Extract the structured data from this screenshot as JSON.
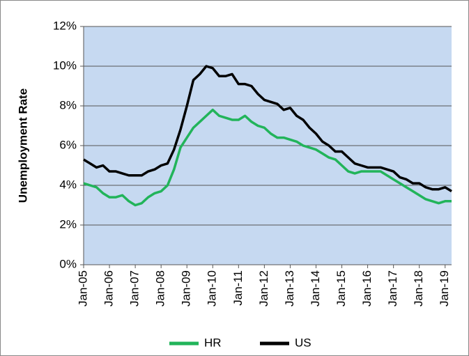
{
  "chart_data": {
    "type": "line",
    "y_label": "Unemployment Rate",
    "categories": [
      "Jan-05",
      null,
      null,
      null,
      "Jan-06",
      null,
      null,
      null,
      "Jan-07",
      null,
      null,
      null,
      "Jan-08",
      null,
      null,
      null,
      "Jan-09",
      null,
      null,
      null,
      "Jan-10",
      null,
      null,
      null,
      "Jan-11",
      null,
      null,
      null,
      "Jan-12",
      null,
      null,
      null,
      "Jan-13",
      null,
      null,
      null,
      "Jan-14",
      null,
      null,
      null,
      "Jan-15",
      null,
      null,
      null,
      "Jan-16",
      null,
      null,
      null,
      "Jan-17",
      null,
      null,
      null,
      "Jan-18",
      null,
      null,
      null,
      "Jan-19",
      null
    ],
    "series": [
      {
        "name": "HR",
        "color": "#22b45a",
        "values": [
          4.1,
          4.0,
          3.9,
          3.6,
          3.4,
          3.4,
          3.5,
          3.2,
          3.0,
          3.1,
          3.4,
          3.6,
          3.7,
          4.0,
          4.8,
          5.9,
          6.4,
          6.9,
          7.2,
          7.5,
          7.8,
          7.5,
          7.4,
          7.3,
          7.3,
          7.5,
          7.2,
          7.0,
          6.9,
          6.6,
          6.4,
          6.4,
          6.3,
          6.2,
          6.0,
          5.9,
          5.8,
          5.6,
          5.4,
          5.3,
          5.0,
          4.7,
          4.6,
          4.7,
          4.7,
          4.7,
          4.7,
          4.5,
          4.3,
          4.1,
          3.9,
          3.7,
          3.5,
          3.3,
          3.2,
          3.1,
          3.2,
          3.2
        ]
      },
      {
        "name": "US",
        "color": "#000000",
        "values": [
          5.3,
          5.1,
          4.9,
          5.0,
          4.7,
          4.7,
          4.6,
          4.5,
          4.5,
          4.5,
          4.7,
          4.8,
          5.0,
          5.1,
          5.8,
          6.8,
          8.0,
          9.3,
          9.6,
          10.0,
          9.9,
          9.5,
          9.5,
          9.6,
          9.1,
          9.1,
          9.0,
          8.6,
          8.3,
          8.2,
          8.1,
          7.8,
          7.9,
          7.5,
          7.3,
          6.9,
          6.6,
          6.2,
          6.0,
          5.7,
          5.7,
          5.4,
          5.1,
          5.0,
          4.9,
          4.9,
          4.9,
          4.8,
          4.7,
          4.4,
          4.3,
          4.1,
          4.1,
          3.9,
          3.8,
          3.8,
          3.9,
          3.7
        ]
      }
    ],
    "ylim": [
      0,
      12
    ],
    "yticks": [
      {
        "value": 0,
        "label": "0%"
      },
      {
        "value": 2,
        "label": "2%"
      },
      {
        "value": 4,
        "label": "4%"
      },
      {
        "value": 6,
        "label": "6%"
      },
      {
        "value": 8,
        "label": "8%"
      },
      {
        "value": 10,
        "label": "10%"
      },
      {
        "value": 12,
        "label": "12%"
      }
    ],
    "grid": true,
    "legend": "bottom",
    "plot_background": "#c6d9f1"
  }
}
